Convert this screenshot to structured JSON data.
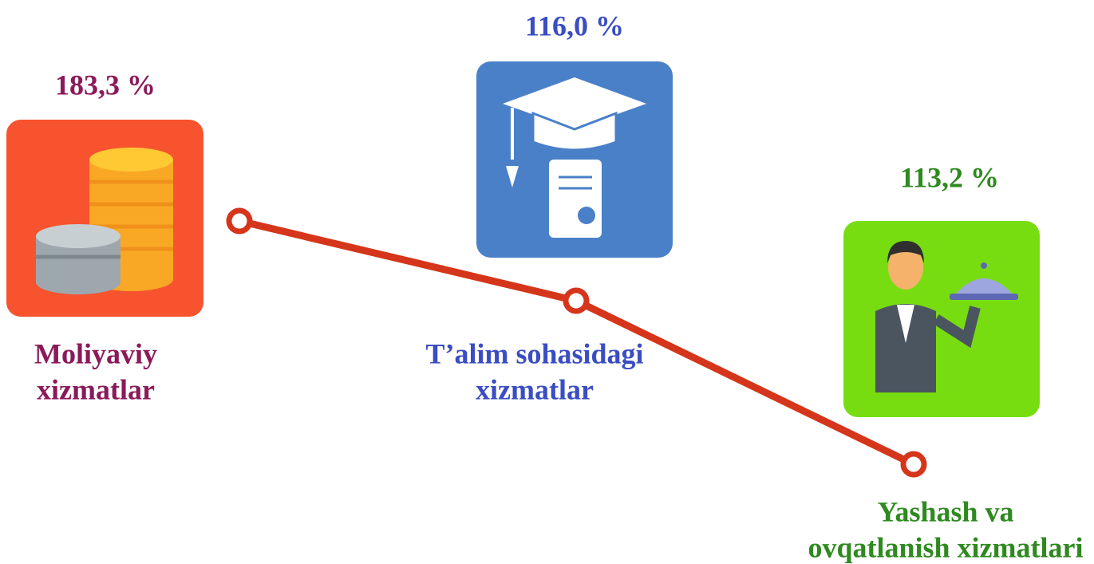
{
  "items": [
    {
      "value": "183,3 %",
      "label_lines": [
        "Moliyaviy",
        "xizmatlar"
      ]
    },
    {
      "value": "116,0 %",
      "label_lines": [
        "T’alim sohasidagi",
        "xizmatlar"
      ]
    },
    {
      "value": "113,2 %",
      "label_lines": [
        "Yashash va",
        "ovqatlanish xizmatlari"
      ]
    }
  ]
}
